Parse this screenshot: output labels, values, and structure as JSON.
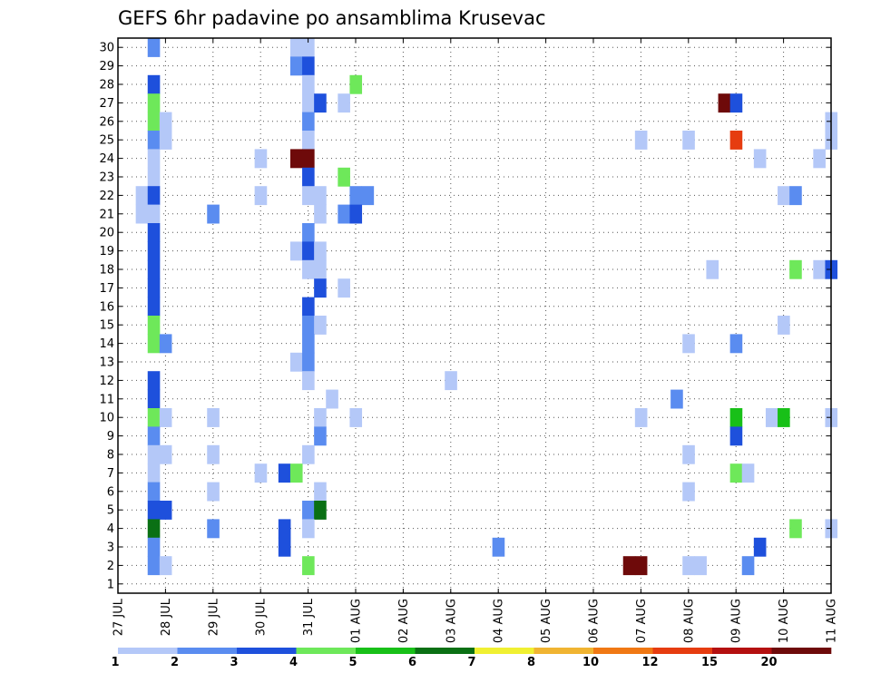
{
  "chart_data": {
    "type": "heatmap",
    "title": "GEFS 6hr padavine po ansamblima Krusevac",
    "x_tick_labels": [
      "27 JUL",
      "28 JUL",
      "29 JUL",
      "30 JUL",
      "31 JUL",
      "01 AUG",
      "02 AUG",
      "03 AUG",
      "04 AUG",
      "05 AUG",
      "06 AUG",
      "07 AUG",
      "08 AUG",
      "09 AUG",
      "10 AUG",
      "11 AUG"
    ],
    "y_tick_labels": [
      "1",
      "2",
      "3",
      "4",
      "5",
      "6",
      "7",
      "8",
      "9",
      "10",
      "11",
      "12",
      "13",
      "14",
      "15",
      "16",
      "17",
      "18",
      "19",
      "20",
      "21",
      "22",
      "23",
      "24",
      "25",
      "26",
      "27",
      "28",
      "29",
      "30"
    ],
    "xlim": [
      0,
      15
    ],
    "ylim": [
      0.5,
      30.5
    ],
    "grid": true,
    "colorbar": {
      "labels": [
        "1",
        "2",
        "3",
        "4",
        "5",
        "6",
        "7",
        "8",
        "10",
        "12",
        "15",
        "20"
      ],
      "colors": [
        "#b4c8f8",
        "#5a8cf0",
        "#1e50dc",
        "#6ee85a",
        "#18c018",
        "#0a7014",
        "#f0f032",
        "#f0b432",
        "#f07814",
        "#e63c10",
        "#b41010",
        "#6e0a0a"
      ]
    },
    "cells": [
      [
        0.75,
        30,
        1
      ],
      [
        3.75,
        30,
        0
      ],
      [
        4.0,
        30,
        0
      ],
      [
        3.75,
        29,
        1
      ],
      [
        4.0,
        29,
        2
      ],
      [
        0.75,
        28,
        2
      ],
      [
        4.0,
        28,
        0
      ],
      [
        5.0,
        28,
        3
      ],
      [
        0.75,
        27,
        3
      ],
      [
        4.0,
        27,
        0
      ],
      [
        4.25,
        27,
        2
      ],
      [
        4.75,
        27,
        0
      ],
      [
        12.75,
        27,
        11
      ],
      [
        13.0,
        27,
        2
      ],
      [
        0.75,
        26,
        3
      ],
      [
        1.0,
        26,
        0
      ],
      [
        4.0,
        26,
        1
      ],
      [
        15.0,
        26,
        0
      ],
      [
        0.75,
        25,
        1
      ],
      [
        1.0,
        25,
        0
      ],
      [
        4.0,
        25,
        0
      ],
      [
        11.0,
        25,
        0
      ],
      [
        12.0,
        25,
        0
      ],
      [
        13.0,
        25,
        9
      ],
      [
        15.0,
        25,
        0
      ],
      [
        0.75,
        24,
        0
      ],
      [
        3.0,
        24,
        0
      ],
      [
        3.75,
        24,
        11
      ],
      [
        4.0,
        24,
        11
      ],
      [
        13.5,
        24,
        0
      ],
      [
        14.75,
        24,
        0
      ],
      [
        0.75,
        23,
        0
      ],
      [
        4.0,
        23,
        2
      ],
      [
        4.75,
        23,
        3
      ],
      [
        0.5,
        22,
        0
      ],
      [
        0.75,
        22,
        2
      ],
      [
        3.0,
        22,
        0
      ],
      [
        4.0,
        22,
        0
      ],
      [
        4.25,
        22,
        0
      ],
      [
        5.0,
        22,
        1
      ],
      [
        5.25,
        22,
        1
      ],
      [
        14.0,
        22,
        0
      ],
      [
        14.25,
        22,
        1
      ],
      [
        0.5,
        21,
        0
      ],
      [
        0.75,
        21,
        0
      ],
      [
        2.0,
        21,
        1
      ],
      [
        4.25,
        21,
        0
      ],
      [
        4.75,
        21,
        1
      ],
      [
        5.0,
        21,
        2
      ],
      [
        0.75,
        20,
        2
      ],
      [
        4.0,
        20,
        1
      ],
      [
        0.75,
        19,
        2
      ],
      [
        3.75,
        19,
        0
      ],
      [
        4.0,
        19,
        2
      ],
      [
        4.25,
        19,
        0
      ],
      [
        0.75,
        18,
        2
      ],
      [
        4.0,
        18,
        0
      ],
      [
        4.25,
        18,
        0
      ],
      [
        12.5,
        18,
        0
      ],
      [
        14.25,
        18,
        3
      ],
      [
        14.75,
        18,
        0
      ],
      [
        15.0,
        18,
        2
      ],
      [
        0.75,
        17,
        2
      ],
      [
        4.25,
        17,
        2
      ],
      [
        4.75,
        17,
        0
      ],
      [
        0.75,
        16,
        2
      ],
      [
        4.0,
        16,
        2
      ],
      [
        0.75,
        15,
        3
      ],
      [
        4.0,
        15,
        1
      ],
      [
        4.25,
        15,
        0
      ],
      [
        14.0,
        15,
        0
      ],
      [
        0.75,
        14,
        3
      ],
      [
        1.0,
        14,
        1
      ],
      [
        4.0,
        14,
        1
      ],
      [
        12.0,
        14,
        0
      ],
      [
        13.0,
        14,
        1
      ],
      [
        3.75,
        13,
        0
      ],
      [
        4.0,
        13,
        1
      ],
      [
        0.75,
        12,
        2
      ],
      [
        4.0,
        12,
        0
      ],
      [
        7.0,
        12,
        0
      ],
      [
        0.75,
        11,
        2
      ],
      [
        4.5,
        11,
        0
      ],
      [
        11.75,
        11,
        1
      ],
      [
        0.75,
        10,
        3
      ],
      [
        1.0,
        10,
        0
      ],
      [
        2.0,
        10,
        0
      ],
      [
        4.25,
        10,
        0
      ],
      [
        5.0,
        10,
        0
      ],
      [
        11.0,
        10,
        0
      ],
      [
        13.0,
        10,
        4
      ],
      [
        13.75,
        10,
        0
      ],
      [
        14.0,
        10,
        4
      ],
      [
        15.0,
        10,
        0
      ],
      [
        0.75,
        9,
        1
      ],
      [
        4.25,
        9,
        1
      ],
      [
        13.0,
        9,
        2
      ],
      [
        0.75,
        8,
        0
      ],
      [
        1.0,
        8,
        0
      ],
      [
        2.0,
        8,
        0
      ],
      [
        4.0,
        8,
        0
      ],
      [
        12.0,
        8,
        0
      ],
      [
        0.75,
        7,
        0
      ],
      [
        3.0,
        7,
        0
      ],
      [
        3.5,
        7,
        2
      ],
      [
        3.75,
        7,
        3
      ],
      [
        13.0,
        7,
        3
      ],
      [
        13.25,
        7,
        0
      ],
      [
        0.75,
        6,
        1
      ],
      [
        2.0,
        6,
        0
      ],
      [
        4.25,
        6,
        0
      ],
      [
        12.0,
        6,
        0
      ],
      [
        0.75,
        5,
        2
      ],
      [
        1.0,
        5,
        2
      ],
      [
        4.0,
        5,
        1
      ],
      [
        4.25,
        5,
        5
      ],
      [
        0.75,
        4,
        5
      ],
      [
        2.0,
        4,
        1
      ],
      [
        3.5,
        4,
        2
      ],
      [
        4.0,
        4,
        0
      ],
      [
        14.25,
        4,
        3
      ],
      [
        15.0,
        4,
        0
      ],
      [
        0.75,
        3,
        1
      ],
      [
        3.5,
        3,
        2
      ],
      [
        8.0,
        3,
        1
      ],
      [
        13.5,
        3,
        2
      ],
      [
        0.75,
        2,
        1
      ],
      [
        1.0,
        2,
        0
      ],
      [
        4.0,
        2,
        3
      ],
      [
        10.75,
        2,
        11
      ],
      [
        11.0,
        2,
        11
      ],
      [
        12.0,
        2,
        0
      ],
      [
        12.25,
        2,
        0
      ],
      [
        13.25,
        2,
        1
      ]
    ]
  }
}
